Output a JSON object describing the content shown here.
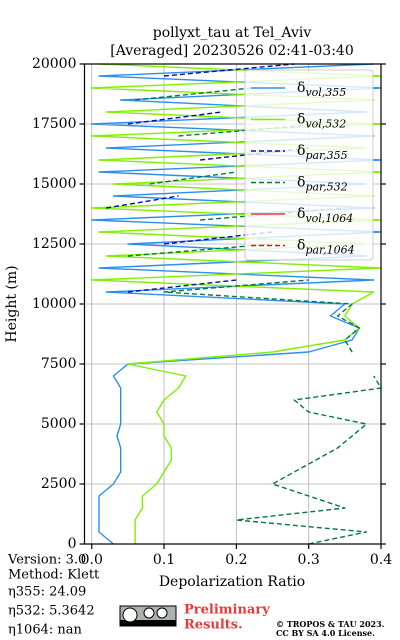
{
  "chart_data": {
    "type": "line",
    "title": [
      "pollyxt_tau at Tel_Aviv",
      "[Averaged] 20230526 02:41-03:40"
    ],
    "xlabel": "Depolarization Ratio",
    "ylabel": "Height (m)",
    "xlim": [
      -0.01,
      0.4
    ],
    "xticks": [
      {
        "value": 0,
        "label": "0.0"
      },
      0.1,
      0.2,
      0.3,
      0.4
    ],
    "ylim": [
      0,
      20000
    ],
    "yticks": [
      0,
      2500,
      5000,
      7500,
      10000,
      12500,
      15000,
      17500,
      20000
    ],
    "grid": true,
    "legend": "upper right",
    "heights": [
      0,
      500,
      1000,
      1500,
      2000,
      2500,
      3000,
      3500,
      4000,
      4500,
      5000,
      5500,
      6000,
      6500,
      7000,
      7500,
      8000,
      8500,
      9000,
      9500,
      10000,
      10500,
      11000,
      11500,
      12000,
      12500,
      13000,
      13500,
      14000,
      14500,
      15000,
      15500,
      16000,
      16500,
      17000,
      17500,
      18000,
      18500,
      19000,
      19500,
      20000
    ],
    "series": [
      {
        "name": "δvol,355",
        "color": "#2b8ff0",
        "linestyle": "solid",
        "values": [
          0.03,
          0.01,
          0.01,
          0.01,
          0.01,
          0.03,
          0.04,
          0.04,
          0.04,
          0.035,
          0.04,
          0.04,
          0.04,
          0.04,
          0.03,
          0.05,
          0.3,
          0.36,
          0.37,
          0.33,
          0.35,
          0.02,
          0.39,
          0.01,
          0.38,
          0.05,
          0.4,
          0.0,
          0.39,
          0.03,
          0.38,
          0.01,
          0.4,
          0.02,
          0.39,
          0.0,
          0.38,
          0.04,
          0.4,
          0.01,
          0.39
        ]
      },
      {
        "name": "δvol,532",
        "color": "#80f000",
        "linestyle": "solid",
        "values": [
          0.06,
          0.06,
          0.06,
          0.07,
          0.07,
          0.09,
          0.1,
          0.11,
          0.11,
          0.1,
          0.1,
          0.09,
          0.1,
          0.12,
          0.13,
          0.05,
          0.25,
          0.35,
          0.37,
          0.35,
          0.36,
          0.39,
          0.0,
          0.4,
          0.02,
          0.38,
          0.01,
          0.4,
          0.0,
          0.39,
          0.03,
          0.4,
          0.01,
          0.38,
          0.0,
          0.4,
          0.02,
          0.39,
          0.0,
          0.4,
          0.01
        ]
      },
      {
        "name": "δpar,355",
        "color": "#0a0ab4",
        "linestyle": "dashed",
        "values": [
          null,
          null,
          null,
          null,
          null,
          null,
          null,
          null,
          null,
          null,
          null,
          null,
          null,
          null,
          null,
          null,
          null,
          null,
          null,
          null,
          null,
          0.05,
          0.2,
          null,
          null,
          0.1,
          0.25,
          null,
          0.02,
          0.12,
          null,
          null,
          0.15,
          0.3,
          null,
          0.05,
          0.18,
          null,
          null,
          0.1,
          0.28
        ]
      },
      {
        "name": "δpar,532",
        "color": "#047a3a",
        "linestyle": "dashed",
        "values": [
          0.3,
          0.38,
          0.2,
          0.35,
          0.3,
          0.25,
          0.28,
          0.31,
          0.34,
          0.36,
          0.38,
          0.3,
          0.28,
          0.4,
          0.39,
          null,
          0.36,
          0.35,
          0.37,
          0.34,
          0.36,
          0.1,
          0.3,
          null,
          0.05,
          0.25,
          null,
          0.15,
          0.35,
          null,
          0.08,
          0.2,
          null,
          null,
          0.12,
          0.32,
          null,
          0.06,
          0.22,
          null,
          0.1
        ]
      },
      {
        "name": "δvol,1064",
        "color": "#f03c3c",
        "linestyle": "solid",
        "values": [
          null,
          null,
          null,
          null,
          null,
          null,
          null,
          null,
          null,
          null,
          null,
          null,
          null,
          null,
          null,
          null,
          null,
          null,
          null,
          null,
          null,
          null,
          null,
          null,
          null,
          null,
          null,
          null,
          null,
          null,
          null,
          null,
          null,
          null,
          null,
          null,
          null,
          null,
          null,
          null,
          null
        ]
      },
      {
        "name": "δpar,1064",
        "color": "#d01818",
        "linestyle": "dashed",
        "values": [
          null,
          null,
          null,
          null,
          null,
          null,
          null,
          null,
          null,
          null,
          null,
          null,
          null,
          null,
          null,
          null,
          null,
          null,
          null,
          null,
          null,
          null,
          null,
          null,
          null,
          null,
          null,
          null,
          null,
          null,
          null,
          null,
          null,
          null,
          null,
          null,
          null,
          null,
          null,
          null,
          null
        ]
      }
    ]
  },
  "footer": {
    "info": [
      "Version: 3.0",
      "Method: Klett",
      "η355:  24.09",
      "η532: 5.3642",
      "η1064:    nan"
    ],
    "notice": [
      "Preliminary",
      "Results."
    ],
    "copyright": [
      "© TROPOS & TAU 2023.",
      "CC BY SA 4.0 License."
    ]
  }
}
